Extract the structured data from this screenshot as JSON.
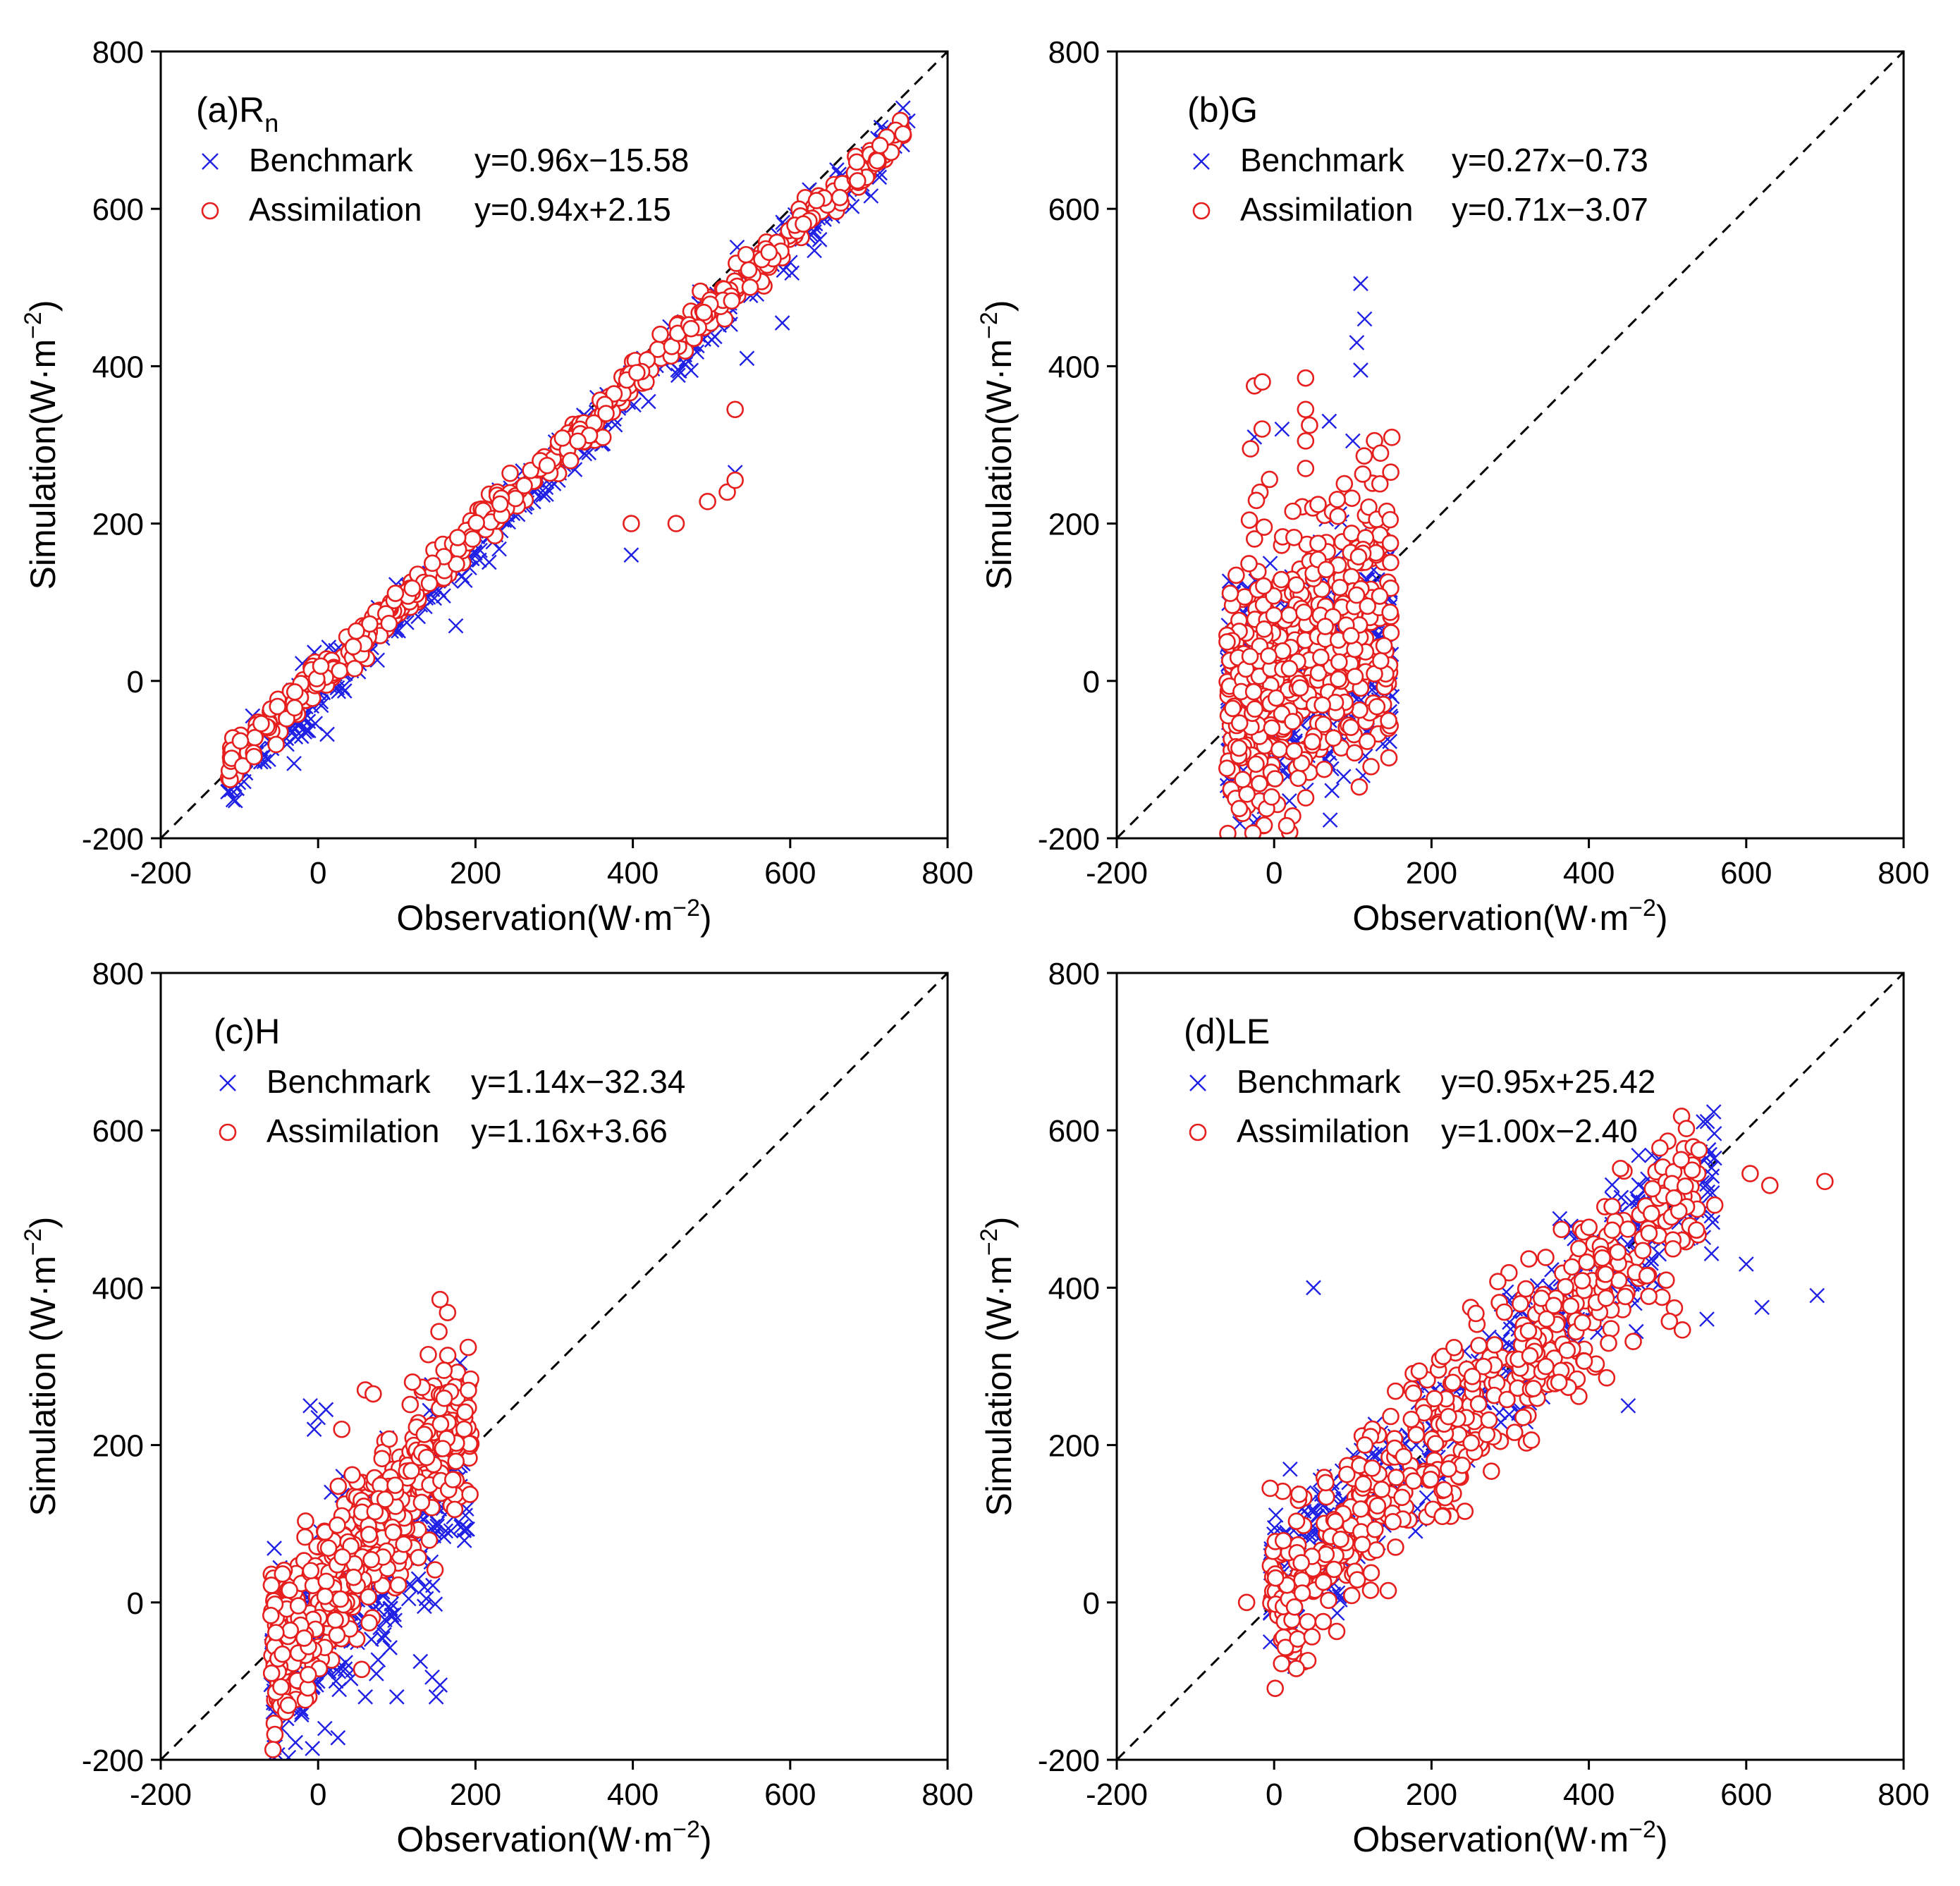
{
  "figure": {
    "x_unit_note": "Observation in W·m-2",
    "y_unit_note": "Simulation in W·m-2"
  },
  "colors": {
    "benchmark": "#1f1fe6",
    "assimilation": "#e61e1e",
    "reference_line": "#000000"
  },
  "chart_data": [
    {
      "type": "scatter",
      "panel": "a",
      "title_main": "(a)R",
      "title_sub": "n",
      "xlabel": "Observation(W·m",
      "xlabel_exp": "−2",
      "xlabel_end": ")",
      "ylabel": "Simulation(W·m",
      "ylabel_exp": "−2",
      "ylabel_end": ")",
      "xlim": [
        -200,
        800
      ],
      "ylim": [
        -200,
        800
      ],
      "xticks": [
        -200,
        0,
        200,
        400,
        600,
        800
      ],
      "yticks": [
        -200,
        0,
        200,
        400,
        600,
        800
      ],
      "reference_line": "1:1 dashed",
      "series": [
        {
          "name": "Benchmark",
          "equation": "y=0.96x−15.58",
          "marker": "x",
          "slope": 0.96,
          "intercept": -15.58,
          "x_range": [
            -115,
            750
          ],
          "spread": 18,
          "outliers": [
            [
              398,
              160
            ],
            [
              530,
              265
            ],
            [
              545,
              410
            ],
            [
              590,
              455
            ],
            [
              175,
              70
            ]
          ]
        },
        {
          "name": "Assimilation",
          "equation": "y=0.94x+2.15",
          "marker": "o",
          "slope": 0.94,
          "intercept": 2.15,
          "x_range": [
            -115,
            745
          ],
          "spread": 12,
          "outliers": [
            [
              398,
              200
            ],
            [
              455,
              200
            ],
            [
              495,
              228
            ],
            [
              520,
              240
            ],
            [
              530,
              255
            ],
            [
              530,
              345
            ]
          ]
        }
      ]
    },
    {
      "type": "scatter",
      "panel": "b",
      "title_main": "(b)G",
      "title_sub": "",
      "xlabel": "Observation(W·m",
      "xlabel_exp": "−2",
      "xlabel_end": ")",
      "ylabel": "Simulation(W·m",
      "ylabel_exp": "−2",
      "ylabel_end": ")",
      "xlim": [
        -200,
        800
      ],
      "ylim": [
        -200,
        800
      ],
      "xticks": [
        -200,
        0,
        200,
        400,
        600,
        800
      ],
      "yticks": [
        -200,
        0,
        200,
        400,
        600,
        800
      ],
      "reference_line": "1:1 dashed",
      "series": [
        {
          "name": "Benchmark",
          "equation": "y=0.27x−0.73",
          "marker": "x",
          "slope": 0.27,
          "intercept": -0.73,
          "x_range": [
            -60,
            150
          ],
          "spread": 70,
          "outliers": [
            [
              110,
              505
            ],
            [
              115,
              460
            ],
            [
              105,
              430
            ],
            [
              110,
              395
            ],
            [
              100,
              305
            ],
            [
              70,
              330
            ],
            [
              -25,
              310
            ],
            [
              10,
              320
            ]
          ]
        },
        {
          "name": "Assimilation",
          "equation": "y=0.71x−3.07",
          "marker": "o",
          "slope": 0.71,
          "intercept": -3.07,
          "x_range": [
            -60,
            150
          ],
          "spread": 90,
          "outliers": [
            [
              -25,
              375
            ],
            [
              -15,
              380
            ],
            [
              -30,
              295
            ],
            [
              40,
              385
            ],
            [
              40,
              345
            ],
            [
              45,
              325
            ],
            [
              40,
              305
            ],
            [
              40,
              270
            ]
          ]
        }
      ]
    },
    {
      "type": "scatter",
      "panel": "c",
      "title_main": "(c)H",
      "title_sub": "",
      "xlabel": "Observation(W·m",
      "xlabel_exp": "−2",
      "xlabel_end": ")",
      "ylabel": "Simulation (W·m",
      "ylabel_exp": "−2",
      "ylabel_end": ")",
      "xlim": [
        -200,
        800
      ],
      "ylim": [
        -200,
        800
      ],
      "xticks": [
        -200,
        0,
        200,
        400,
        600,
        800
      ],
      "yticks": [
        -200,
        0,
        200,
        400,
        600,
        800
      ],
      "reference_line": "1:1 dashed",
      "series": [
        {
          "name": "Benchmark",
          "equation": "y=1.14x−32.34",
          "marker": "x",
          "slope": 1.14,
          "intercept": -32.34,
          "x_range": [
            -60,
            190
          ],
          "spread": 55,
          "outliers": [
            [
              -10,
              250
            ],
            [
              0,
              235
            ],
            [
              10,
              245
            ],
            [
              -5,
              220
            ],
            [
              130,
              -75
            ],
            [
              145,
              -95
            ],
            [
              155,
              -105
            ],
            [
              150,
              -120
            ],
            [
              100,
              -120
            ],
            [
              60,
              -120
            ],
            [
              135,
              -5
            ]
          ]
        },
        {
          "name": "Assimilation",
          "equation": "y=1.16x+3.66",
          "marker": "o",
          "slope": 1.16,
          "intercept": 3.66,
          "x_range": [
            -60,
            195
          ],
          "spread": 55,
          "outliers": [
            [
              155,
              385
            ],
            [
              140,
              315
            ],
            [
              160,
              295
            ],
            [
              60,
              270
            ],
            [
              70,
              265
            ],
            [
              120,
              280
            ]
          ]
        }
      ]
    },
    {
      "type": "scatter",
      "panel": "d",
      "title_main": "(d)LE",
      "title_sub": "",
      "xlabel": "Observation(W·m",
      "xlabel_exp": "−2",
      "xlabel_end": ")",
      "ylabel": "Simulation (W·m",
      "ylabel_exp": "−2",
      "ylabel_end": ")",
      "xlim": [
        -200,
        800
      ],
      "ylim": [
        -200,
        800
      ],
      "xticks": [
        -200,
        0,
        200,
        400,
        600,
        800
      ],
      "yticks": [
        -200,
        0,
        200,
        400,
        600,
        800
      ],
      "reference_line": "1:1 dashed",
      "series": [
        {
          "name": "Benchmark",
          "equation": "y=0.95x+25.42",
          "marker": "x",
          "slope": 0.95,
          "intercept": 25.42,
          "x_range": [
            -5,
            560
          ],
          "spread": 45,
          "outliers": [
            [
              50,
              400
            ],
            [
              690,
              390
            ],
            [
              600,
              430
            ],
            [
              620,
              375
            ],
            [
              550,
              360
            ],
            [
              450,
              250
            ]
          ]
        },
        {
          "name": "Assimilation",
          "equation": "y=1.00x−2.40",
          "marker": "o",
          "slope": 1.0,
          "intercept": -2.4,
          "x_range": [
            -5,
            540
          ],
          "spread": 55,
          "outliers": [
            [
              700,
              535
            ],
            [
              605,
              545
            ],
            [
              630,
              530
            ],
            [
              560,
              505
            ],
            [
              540,
              575
            ],
            [
              145,
              15
            ],
            [
              -35,
              0
            ],
            [
              -5,
              145
            ]
          ]
        }
      ]
    }
  ]
}
